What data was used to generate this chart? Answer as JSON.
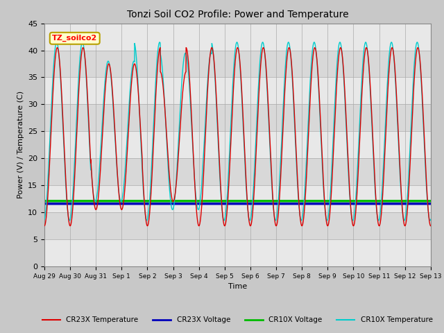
{
  "title": "Tonzi Soil CO2 Profile: Power and Temperature",
  "xlabel": "Time",
  "ylabel": "Power (V) / Temperature (C)",
  "ylim": [
    0,
    45
  ],
  "fig_bg_color": "#c8c8c8",
  "plot_bg_color": "#e0e0e0",
  "band_color_light": "#e8e8e8",
  "band_color_dark": "#d8d8d8",
  "annotation_text": "TZ_soilco2",
  "annotation_box_color": "#ffffcc",
  "annotation_border_color": "#b8a000",
  "cr23x_temp_color": "#dd0000",
  "cr23x_volt_color": "#0000bb",
  "cr10x_volt_color": "#00bb00",
  "cr10x_temp_color": "#00cccc",
  "cr23x_volt_value": 11.6,
  "cr10x_volt_value": 12.1,
  "tick_labels": [
    "Aug 29",
    "Aug 30",
    "Aug 31",
    "Sep 1",
    "Sep 2",
    "Sep 3",
    "Sep 4",
    "Sep 5",
    "Sep 6",
    "Sep 7",
    "Sep 8",
    "Sep 9",
    "Sep 10",
    "Sep 11",
    "Sep 12",
    "Sep 13"
  ],
  "yticks": [
    0,
    5,
    10,
    15,
    20,
    25,
    30,
    35,
    40,
    45
  ],
  "legend_entries": [
    "CR23X Temperature",
    "CR23X Voltage",
    "CR10X Voltage",
    "CR10X Temperature"
  ],
  "legend_colors": [
    "#dd0000",
    "#0000bb",
    "#00bb00",
    "#00cccc"
  ]
}
